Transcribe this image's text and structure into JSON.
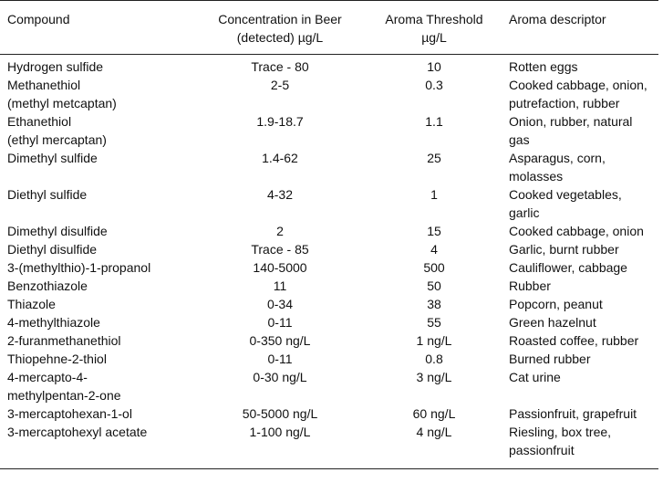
{
  "table": {
    "headers": [
      "Compound",
      "Concentration in Beer\n(detected) µg/L",
      "Aroma Threshold\nµg/L",
      "Aroma descriptor"
    ],
    "rows": [
      [
        "Hydrogen sulfide",
        "Trace - 80",
        "10",
        "Rotten eggs"
      ],
      [
        "Methanethiol\n(methyl metcaptan)",
        "2-5",
        "0.3",
        "Cooked cabbage, onion,\nputrefaction, rubber"
      ],
      [
        "Ethanethiol\n(ethyl mercaptan)",
        "1.9-18.7",
        "1.1",
        "Onion, rubber, natural\ngas"
      ],
      [
        "Dimethyl sulfide",
        "1.4-62",
        "25",
        "Asparagus, corn,\nmolasses"
      ],
      [
        "Diethyl sulfide",
        "4-32",
        "1",
        "Cooked vegetables,\ngarlic"
      ],
      [
        "Dimethyl disulfide",
        "2",
        "15",
        "Cooked cabbage, onion"
      ],
      [
        "Diethyl disulfide",
        "Trace - 85",
        "4",
        "Garlic, burnt rubber"
      ],
      [
        "3-(methylthio)-1-propanol",
        "140-5000",
        "500",
        "Cauliflower, cabbage"
      ],
      [
        "Benzothiazole",
        "11",
        "50",
        "Rubber"
      ],
      [
        "Thiazole",
        "0-34",
        "38",
        "Popcorn, peanut"
      ],
      [
        "4-methylthiazole",
        "0-11",
        "55",
        "Green hazelnut"
      ],
      [
        "2-furanmethanethiol",
        "0-350 ng/L",
        "1 ng/L",
        "Roasted coffee, rubber"
      ],
      [
        "Thiopehne-2-thiol",
        "0-11",
        "0.8",
        "Burned rubber"
      ],
      [
        "4-mercapto-4-\nmethylpentan-2-one",
        "0-30 ng/L",
        "3 ng/L",
        "Cat urine"
      ],
      [
        "3-mercaptohexan-1-ol",
        "50-5000 ng/L",
        "60 ng/L",
        "Passionfruit, grapefruit"
      ],
      [
        "3-mercaptohexyl acetate",
        "1-100 ng/L",
        "4 ng/L",
        "Riesling, box tree,\npassionfruit"
      ]
    ]
  }
}
